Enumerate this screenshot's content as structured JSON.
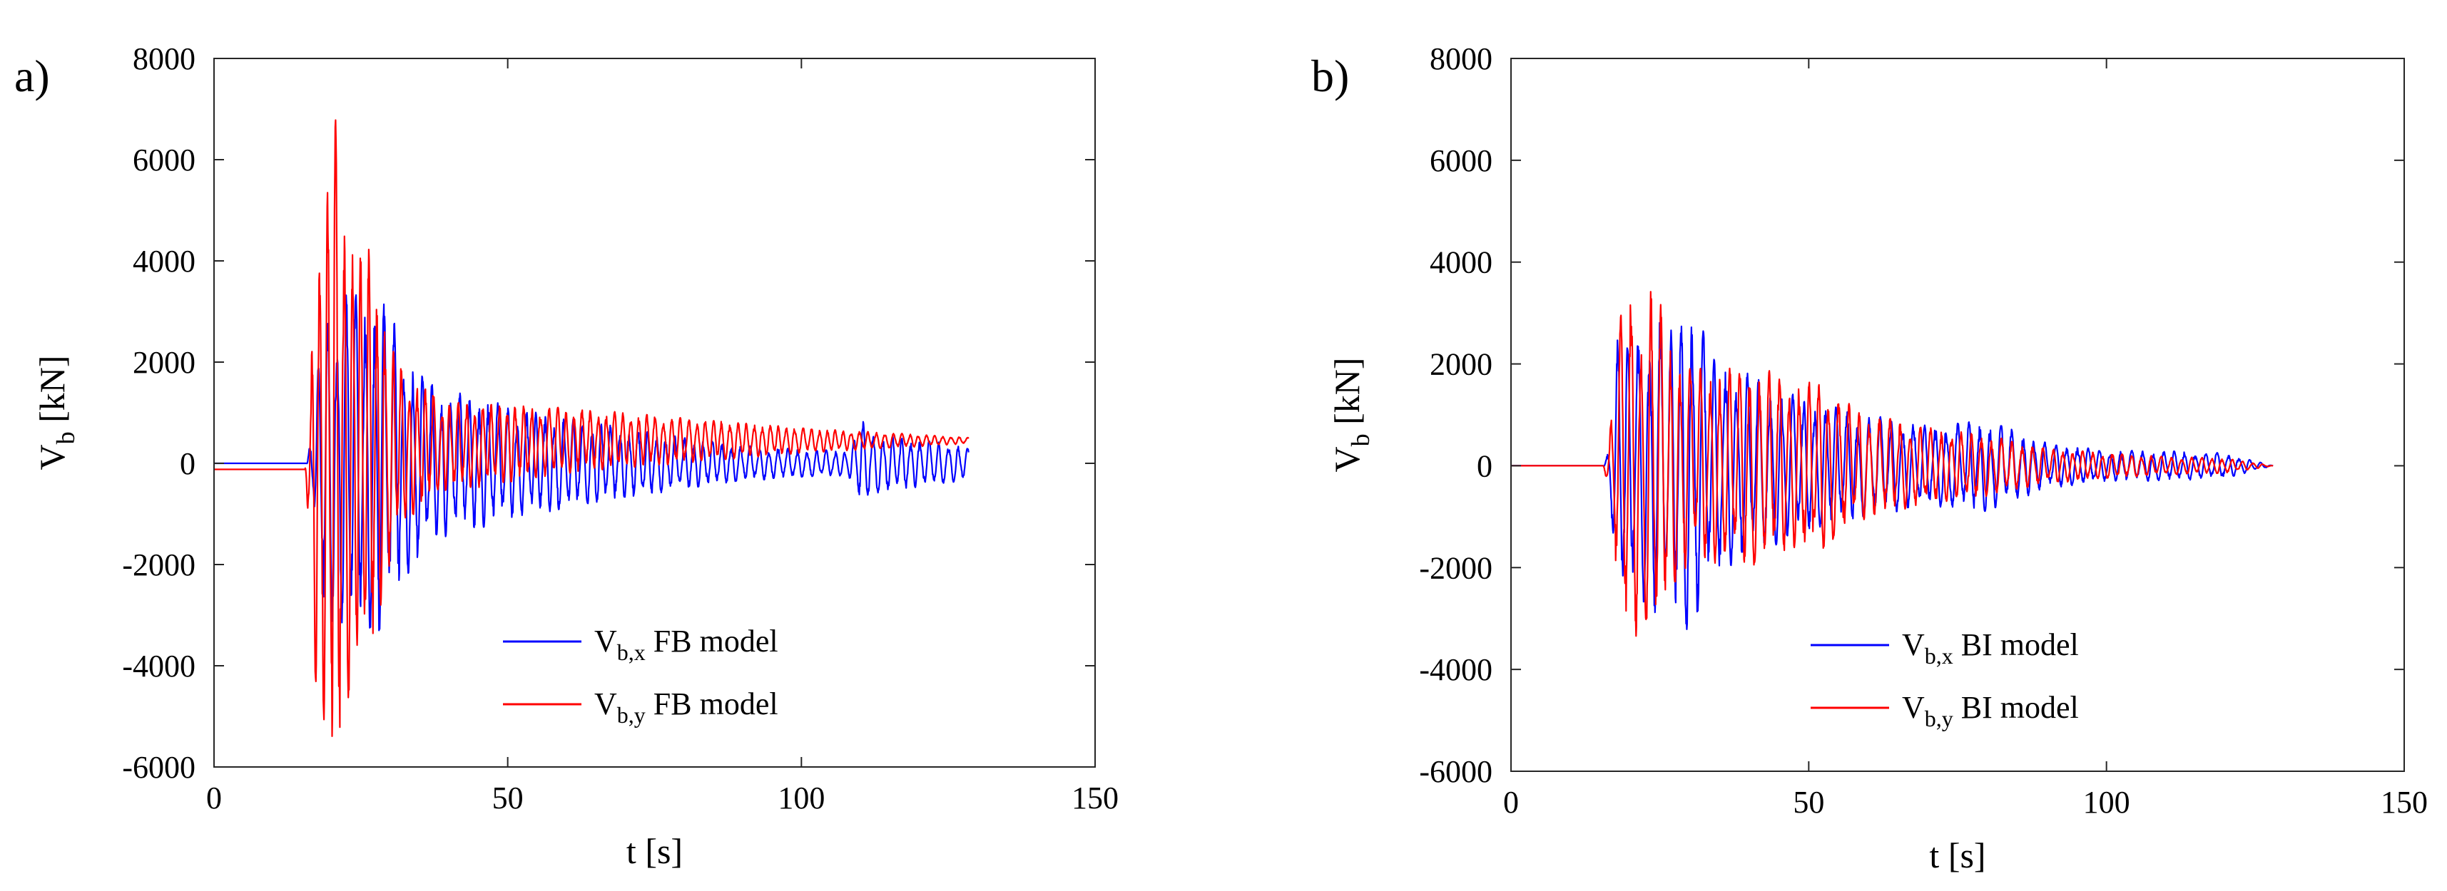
{
  "chart_data": [
    {
      "type": "line",
      "panel_label": "a)",
      "title": "",
      "xlabel": "t [s]",
      "ylabel_main": "V",
      "ylabel_sub": "b",
      "ylabel_unit": " [kN]",
      "xlim": [
        0,
        150
      ],
      "ylim": [
        -6000,
        8000
      ],
      "xticks": [
        0,
        50,
        100,
        150
      ],
      "yticks": [
        -6000,
        -4000,
        -2000,
        0,
        2000,
        4000,
        6000,
        8000
      ],
      "grid": false,
      "legend_position": "lower-right",
      "series": [
        {
          "name": "Vb,x FB model",
          "legend_main": "V",
          "legend_sub": "b,x",
          "legend_text": " FB model",
          "color": "#0000ff",
          "offset": 0,
          "end_value": 80,
          "envelope": [
            [
              0,
              0
            ],
            [
              15.8,
              0
            ],
            [
              17,
              900
            ],
            [
              19,
              3600
            ],
            [
              21,
              2800
            ],
            [
              23,
              3800
            ],
            [
              25,
              3200
            ],
            [
              28,
              3500
            ],
            [
              31,
              2700
            ],
            [
              34,
              2000
            ],
            [
              38,
              1500
            ],
            [
              45,
              1300
            ],
            [
              55,
              1000
            ],
            [
              65,
              800
            ],
            [
              75,
              600
            ],
            [
              90,
              350
            ],
            [
              100,
              280
            ],
            [
              108,
              250
            ],
            [
              109,
              500
            ],
            [
              110,
              900
            ],
            [
              112,
              600
            ],
            [
              118,
              500
            ],
            [
              125,
              400
            ],
            [
              128.5,
              300
            ]
          ],
          "freq": 0.62,
          "seed": 11
        },
        {
          "name": "Vb,y FB model",
          "legend_main": "V",
          "legend_sub": "b,y",
          "legend_text": " FB model",
          "color": "#ff0000",
          "offset_profile": [
            [
              0,
              -120
            ],
            [
              15.5,
              -120
            ],
            [
              17,
              0
            ],
            [
              35,
              300
            ],
            [
              60,
              450
            ],
            [
              90,
              450
            ],
            [
              128.5,
              450
            ]
          ],
          "envelope": [
            [
              0,
              0
            ],
            [
              15.5,
              0
            ],
            [
              16.5,
              2000
            ],
            [
              17.5,
              5300
            ],
            [
              19,
              5400
            ],
            [
              20.5,
              7000
            ],
            [
              22,
              5000
            ],
            [
              24,
              4600
            ],
            [
              26,
              4300
            ],
            [
              28,
              3200
            ],
            [
              30,
              2200
            ],
            [
              33,
              1400
            ],
            [
              40,
              900
            ],
            [
              60,
              650
            ],
            [
              80,
              450
            ],
            [
              100,
              250
            ],
            [
              120,
              120
            ],
            [
              128.5,
              60
            ]
          ],
          "freq": 0.72,
          "seed": 23
        }
      ]
    },
    {
      "type": "line",
      "panel_label": "b)",
      "title": "",
      "xlabel": "t [s]",
      "ylabel_main": "V",
      "ylabel_sub": "b",
      "ylabel_unit": " [kN]",
      "xlim": [
        0,
        150
      ],
      "ylim": [
        -6000,
        8000
      ],
      "xticks": [
        0,
        50,
        100,
        150
      ],
      "yticks": [
        -6000,
        -4000,
        -2000,
        0,
        2000,
        4000,
        6000,
        8000
      ],
      "grid": false,
      "legend_position": "lower-right",
      "series": [
        {
          "name": "Vb,x BI model",
          "legend_main": "V",
          "legend_sub": "b,x",
          "legend_text": " BI model",
          "color": "#0000ff",
          "offset": 0,
          "envelope": [
            [
              0,
              0
            ],
            [
              15.5,
              0
            ],
            [
              16.5,
              400
            ],
            [
              18,
              2800
            ],
            [
              20,
              2300
            ],
            [
              22,
              2700
            ],
            [
              25,
              3000
            ],
            [
              27,
              2700
            ],
            [
              30,
              3400
            ],
            [
              34,
              2200
            ],
            [
              40,
              1800
            ],
            [
              50,
              1300
            ],
            [
              60,
              1000
            ],
            [
              70,
              800
            ],
            [
              80,
              900
            ],
            [
              90,
              450
            ],
            [
              100,
              300
            ],
            [
              110,
              300
            ],
            [
              120,
              250
            ],
            [
              128,
              0
            ]
          ],
          "freq": 0.55,
          "seed": 37
        },
        {
          "name": "Vb,y BI model",
          "legend_main": "V",
          "legend_sub": "b,y",
          "legend_text": " BI model",
          "color": "#ff0000",
          "offset": 0,
          "envelope": [
            [
              0,
              0
            ],
            [
              15.5,
              0
            ],
            [
              16.5,
              500
            ],
            [
              18,
              2800
            ],
            [
              20,
              3700
            ],
            [
              22,
              3000
            ],
            [
              24,
              3700
            ],
            [
              27,
              2400
            ],
            [
              30,
              2000
            ],
            [
              35,
              1900
            ],
            [
              42,
              2000
            ],
            [
              47,
              1600
            ],
            [
              52,
              1700
            ],
            [
              58,
              1100
            ],
            [
              70,
              750
            ],
            [
              80,
              600
            ],
            [
              90,
              350
            ],
            [
              100,
              250
            ],
            [
              110,
              180
            ],
            [
              120,
              150
            ],
            [
              128,
              0
            ]
          ],
          "freq": 0.6,
          "seed": 53
        }
      ]
    }
  ]
}
